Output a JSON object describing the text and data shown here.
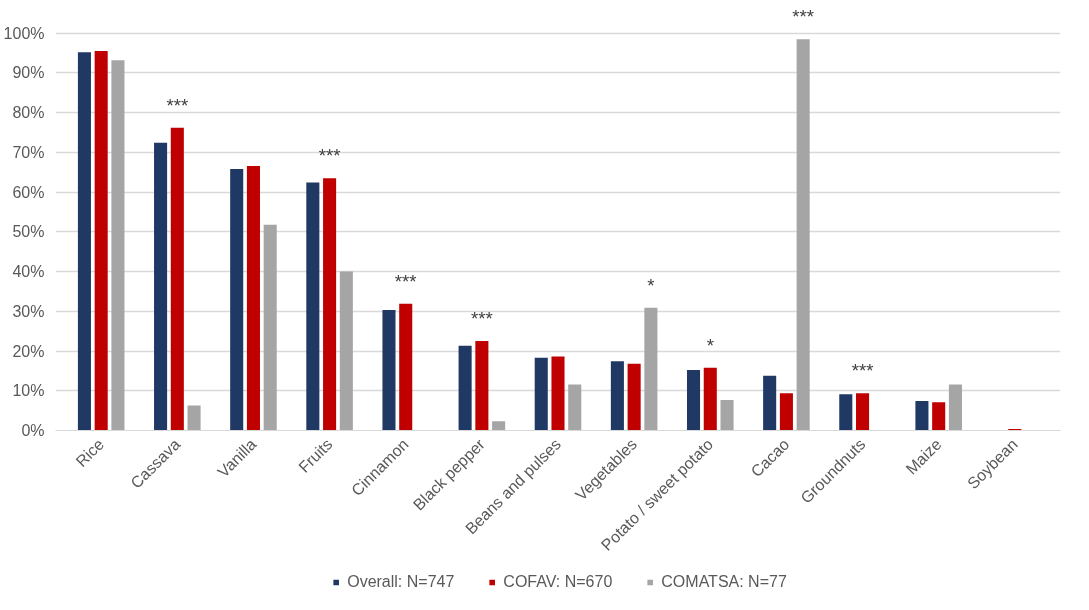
{
  "chart_data": {
    "type": "bar",
    "categories": [
      "Rice",
      "Cassava",
      "Vanilla",
      "Fruits",
      "Cinnamon",
      "Black pepper",
      "Beans and pulses",
      "Vegetables",
      "Potato / sweet potato",
      "Cacao",
      "Groundnuts",
      "Maize",
      "Soybean"
    ],
    "series": [
      {
        "name": "Overall: N=747",
        "color": "#203864",
        "values": [
          95.2,
          72.4,
          65.8,
          62.4,
          30.3,
          21.3,
          18.3,
          17.4,
          15.2,
          13.8,
          9.1,
          7.4,
          0
        ]
      },
      {
        "name": "COFAV: N=670",
        "color": "#c00000",
        "values": [
          95.5,
          76.2,
          66.6,
          63.5,
          31.9,
          22.5,
          18.6,
          16.8,
          15.8,
          9.4,
          9.4,
          7.1,
          0.4
        ],
        "value_labels": [
          null,
          "***",
          null,
          "***",
          "***",
          "***",
          null,
          null,
          "*",
          null,
          "***",
          null,
          null
        ]
      },
      {
        "name": "COMATSA: N=77",
        "color": "#a5a5a5",
        "values": [
          93.2,
          6.3,
          51.8,
          40.0,
          0,
          2.3,
          11.6,
          30.9,
          7.7,
          98.5,
          0,
          11.6,
          0
        ],
        "value_labels": [
          null,
          null,
          null,
          null,
          null,
          null,
          null,
          "*",
          null,
          "***",
          null,
          null,
          null
        ]
      }
    ],
    "ylim": [
      0,
      100
    ],
    "yticks": [
      {
        "value": 0,
        "label": "0%"
      },
      {
        "value": 10,
        "label": "10%"
      },
      {
        "value": 20,
        "label": "20%"
      },
      {
        "value": 30,
        "label": "30%"
      },
      {
        "value": 40,
        "label": "40%"
      },
      {
        "value": 50,
        "label": "50%"
      },
      {
        "value": 60,
        "label": "60%"
      },
      {
        "value": 70,
        "label": "70%"
      },
      {
        "value": 80,
        "label": "80%"
      },
      {
        "value": 90,
        "label": "90%"
      },
      {
        "value": 100,
        "label": "100%"
      }
    ],
    "grid": "y",
    "legend": "bottom"
  }
}
